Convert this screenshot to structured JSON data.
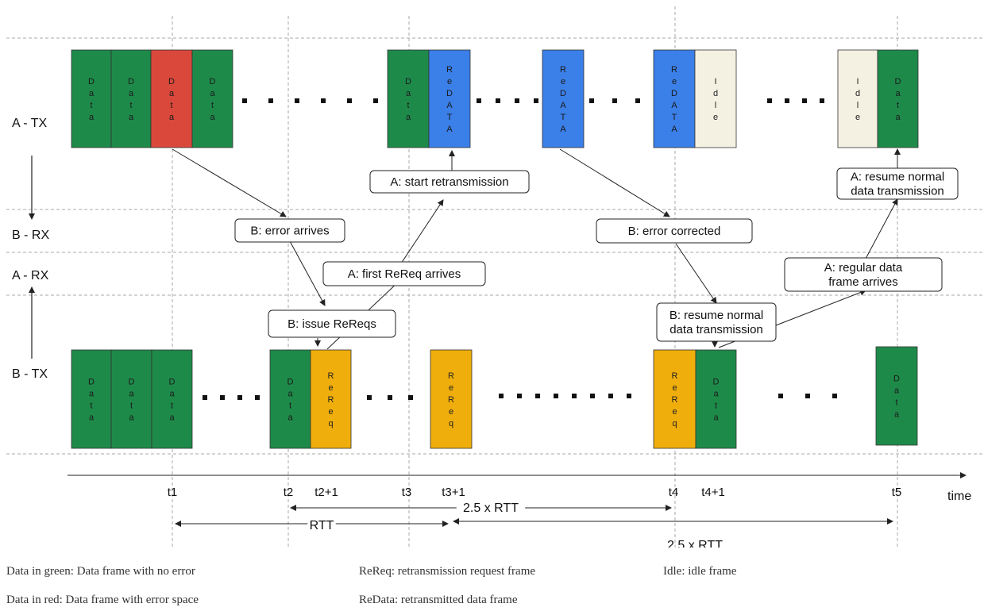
{
  "colors": {
    "data_ok": "#1e8a4a",
    "data_error": "#d9483b",
    "redata": "#3b7fe8",
    "rereq": "#f0ae0c",
    "idle": "#f5f1e2",
    "line": "#222222",
    "grid": "#aaaaaa",
    "text": "#111111"
  },
  "lanes": {
    "a_tx": "A - TX",
    "b_rx": "B - RX",
    "a_rx": "A - RX",
    "b_tx": "B - TX"
  },
  "frames": [
    {
      "kind": "data_ok",
      "label": "Data",
      "lane": "a_tx"
    },
    {
      "kind": "data_ok",
      "label": "Data",
      "lane": "a_tx"
    },
    {
      "kind": "data_error",
      "label": "Data",
      "lane": "a_tx"
    },
    {
      "kind": "data_ok",
      "label": "Data",
      "lane": "a_tx"
    },
    {
      "kind": "data_ok",
      "label": "Data",
      "lane": "a_tx"
    },
    {
      "kind": "redata",
      "label": "ReDATA",
      "lane": "a_tx"
    },
    {
      "kind": "redata",
      "label": "ReDATA",
      "lane": "a_tx"
    },
    {
      "kind": "redata",
      "label": "ReDATA",
      "lane": "a_tx"
    },
    {
      "kind": "idle",
      "label": "Idle",
      "lane": "a_tx"
    },
    {
      "kind": "idle",
      "label": "Idle",
      "lane": "a_tx"
    },
    {
      "kind": "data_ok",
      "label": "Data",
      "lane": "a_tx"
    },
    {
      "kind": "data_ok",
      "label": "Data",
      "lane": "b_tx"
    },
    {
      "kind": "data_ok",
      "label": "Data",
      "lane": "b_tx"
    },
    {
      "kind": "data_ok",
      "label": "Data",
      "lane": "b_tx"
    },
    {
      "kind": "data_ok",
      "label": "Data",
      "lane": "b_tx"
    },
    {
      "kind": "rereq",
      "label": "ReReq",
      "lane": "b_tx"
    },
    {
      "kind": "rereq",
      "label": "ReReq",
      "lane": "b_tx"
    },
    {
      "kind": "rereq",
      "label": "ReReq",
      "lane": "b_tx"
    },
    {
      "kind": "data_ok",
      "label": "Data",
      "lane": "b_tx"
    },
    {
      "kind": "data_ok",
      "label": "Data",
      "lane": "b_tx"
    }
  ],
  "events": [
    {
      "lines": [
        "B: error arrives"
      ]
    },
    {
      "lines": [
        "B: issue ReReqs"
      ]
    },
    {
      "lines": [
        "A: first ReReq arrives"
      ]
    },
    {
      "lines": [
        "A: start retransmission"
      ]
    },
    {
      "lines": [
        "B: error corrected"
      ]
    },
    {
      "lines": [
        "B: resume normal",
        "data transmission"
      ]
    },
    {
      "lines": [
        "A: regular data",
        "frame arrives"
      ]
    },
    {
      "lines": [
        "A: resume normal",
        "data transmission"
      ]
    }
  ],
  "timeline": {
    "axis_label": "time",
    "ticks": [
      "t1",
      "t2",
      "t2+1",
      "t3",
      "t3+1",
      "t4",
      "t4+1",
      "t5"
    ]
  },
  "spans": [
    {
      "label": "2.5 x RTT"
    },
    {
      "label": "RTT"
    },
    {
      "label": "2.5 x RTT"
    }
  ],
  "legend": {
    "data_green": "Data in green: Data frame with no error",
    "data_red": "Data in red: Data frame with error space",
    "rereq": "ReReq: retransmission request frame",
    "redata": "ReData: retransmitted data frame",
    "idle": "Idle: idle frame"
  }
}
